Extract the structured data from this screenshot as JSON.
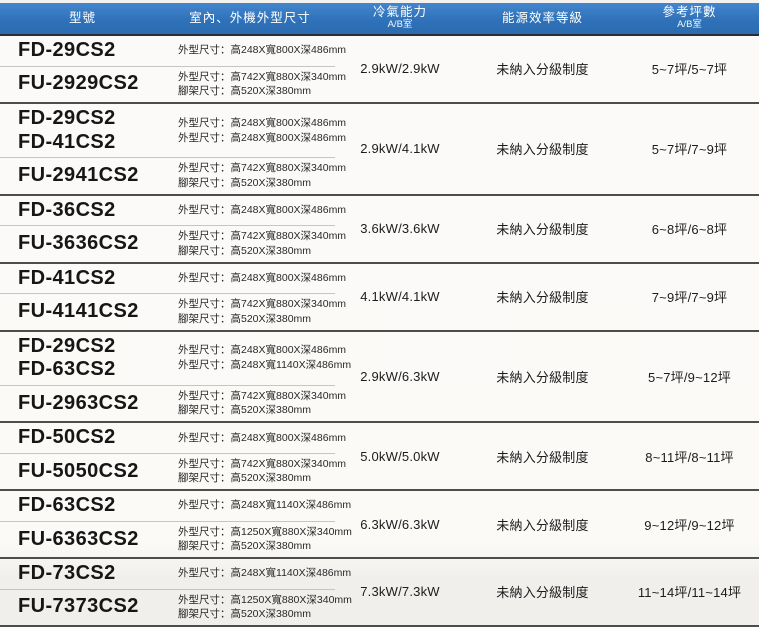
{
  "header": {
    "accent_color": "#2f72ba",
    "text_color": "#ffffff",
    "columns": [
      {
        "label": "型號",
        "sub": ""
      },
      {
        "label": "室內、外機外型尺寸",
        "sub": ""
      },
      {
        "label": "冷氣能力",
        "sub": "A/B室"
      },
      {
        "label": "能源效率等級",
        "sub": ""
      },
      {
        "label": "參考坪數",
        "sub": "A/B室"
      }
    ]
  },
  "table": {
    "groups": [
      {
        "indoor": {
          "models": [
            "FD-29CS2"
          ],
          "dims": [
            "外型尺寸：高248X寬800X深486mm"
          ]
        },
        "outdoor": {
          "model": "FU-2929CS2",
          "dims": [
            "外型尺寸：高742X寬880X深340mm",
            "腳架尺寸：高520X深380mm"
          ]
        },
        "cooling": "2.9kW/2.9kW",
        "efficiency": "未納入分級制度",
        "area": "5~7坪/5~7坪"
      },
      {
        "indoor": {
          "models": [
            "FD-29CS2",
            "FD-41CS2"
          ],
          "dims": [
            "外型尺寸：高248X寬800X深486mm",
            "外型尺寸：高248X寬800X深486mm"
          ]
        },
        "outdoor": {
          "model": "FU-2941CS2",
          "dims": [
            "外型尺寸：高742X寬880X深340mm",
            "腳架尺寸：高520X深380mm"
          ]
        },
        "cooling": "2.9kW/4.1kW",
        "efficiency": "未納入分級制度",
        "area": "5~7坪/7~9坪"
      },
      {
        "indoor": {
          "models": [
            "FD-36CS2"
          ],
          "dims": [
            "外型尺寸：高248X寬800X深486mm"
          ]
        },
        "outdoor": {
          "model": "FU-3636CS2",
          "dims": [
            "外型尺寸：高742X寬880X深340mm",
            "腳架尺寸：高520X深380mm"
          ]
        },
        "cooling": "3.6kW/3.6kW",
        "efficiency": "未納入分級制度",
        "area": "6~8坪/6~8坪"
      },
      {
        "indoor": {
          "models": [
            "FD-41CS2"
          ],
          "dims": [
            "外型尺寸：高248X寬800X深486mm"
          ]
        },
        "outdoor": {
          "model": "FU-4141CS2",
          "dims": [
            "外型尺寸：高742X寬880X深340mm",
            "腳架尺寸：高520X深380mm"
          ]
        },
        "cooling": "4.1kW/4.1kW",
        "efficiency": "未納入分級制度",
        "area": "7~9坪/7~9坪"
      },
      {
        "indoor": {
          "models": [
            "FD-29CS2",
            "FD-63CS2"
          ],
          "dims": [
            "外型尺寸：高248X寬800X深486mm",
            "外型尺寸：高248X寬1140X深486mm"
          ]
        },
        "outdoor": {
          "model": "FU-2963CS2",
          "dims": [
            "外型尺寸：高742X寬880X深340mm",
            "腳架尺寸：高520X深380mm"
          ]
        },
        "cooling": "2.9kW/6.3kW",
        "efficiency": "未納入分級制度",
        "area": "5~7坪/9~12坪"
      },
      {
        "indoor": {
          "models": [
            "FD-50CS2"
          ],
          "dims": [
            "外型尺寸：高248X寬800X深486mm"
          ]
        },
        "outdoor": {
          "model": "FU-5050CS2",
          "dims": [
            "外型尺寸：高742X寬880X深340mm",
            "腳架尺寸：高520X深380mm"
          ]
        },
        "cooling": "5.0kW/5.0kW",
        "efficiency": "未納入分級制度",
        "area": "8~11坪/8~11坪"
      },
      {
        "indoor": {
          "models": [
            "FD-63CS2"
          ],
          "dims": [
            "外型尺寸：高248X寬1140X深486mm"
          ]
        },
        "outdoor": {
          "model": "FU-6363CS2",
          "dims": [
            "外型尺寸：高1250X寬880X深340mm",
            "腳架尺寸：高520X深380mm"
          ]
        },
        "cooling": "6.3kW/6.3kW",
        "efficiency": "未納入分級制度",
        "area": "9~12坪/9~12坪"
      },
      {
        "indoor": {
          "models": [
            "FD-73CS2"
          ],
          "dims": [
            "外型尺寸：高248X寬1140X深486mm"
          ]
        },
        "outdoor": {
          "model": "FU-7373CS2",
          "dims": [
            "外型尺寸：高1250X寬880X深340mm",
            "腳架尺寸：高520X深380mm"
          ]
        },
        "cooling": "7.3kW/7.3kW",
        "efficiency": "未納入分級制度",
        "area": "11~14坪/11~14坪"
      }
    ]
  }
}
